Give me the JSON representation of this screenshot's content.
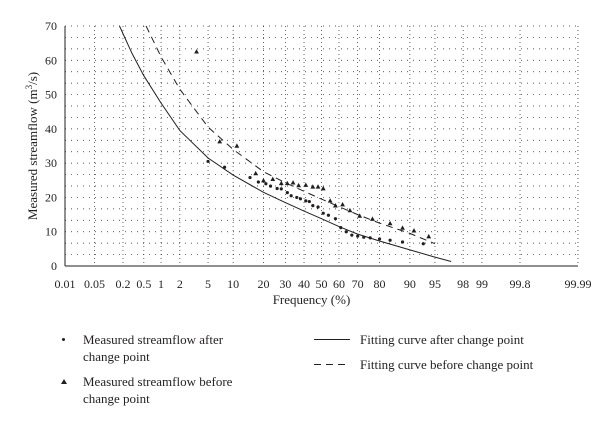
{
  "chart_data": {
    "type": "scatter",
    "xscale": "probability",
    "xlabel": "Frequency (%)",
    "ylabel": "Measured streamflow (m3/s)",
    "ylabel_parts": {
      "before": "Measured streamflow (m",
      "sup": "3",
      "after": "/s)"
    },
    "ylim": [
      0,
      70
    ],
    "yticks": [
      0,
      10,
      20,
      30,
      40,
      50,
      60,
      70
    ],
    "xticks": [
      "0.01",
      "0.05",
      "0.2",
      "0.5",
      "1",
      "2",
      "5",
      "10",
      "20",
      "30",
      "40",
      "50",
      "60",
      "70",
      "80",
      "90",
      "95",
      "98",
      "99",
      "99.8",
      "99.99"
    ],
    "xtick_values": [
      0.01,
      0.05,
      0.2,
      0.5,
      1,
      2,
      5,
      10,
      20,
      30,
      40,
      50,
      60,
      70,
      80,
      90,
      95,
      98,
      99,
      99.8,
      99.99
    ],
    "grid": "dotted",
    "series": [
      {
        "name": "Measured streamflow after change point",
        "kind": "points",
        "marker": "dot",
        "x": [
          5,
          8,
          15,
          18,
          21,
          23,
          26,
          28,
          31,
          33,
          36,
          38,
          41,
          43,
          45,
          48,
          51,
          54,
          58,
          61,
          64,
          67,
          70,
          73,
          76,
          80,
          84,
          88,
          93
        ],
        "y": [
          30.5,
          28.8,
          25.8,
          24.5,
          24.0,
          23.3,
          22.6,
          22.5,
          21.4,
          20.5,
          20.0,
          19.6,
          19.0,
          18.8,
          17.6,
          17.2,
          15.4,
          14.8,
          13.8,
          11.2,
          10.0,
          9.0,
          8.7,
          8.4,
          8.2,
          7.9,
          7.5,
          7.0,
          6.5
        ]
      },
      {
        "name": "Measured streamflow before change point",
        "kind": "points",
        "marker": "triangle",
        "x": [
          3.5,
          7,
          11,
          17,
          20,
          24,
          28,
          31,
          34,
          37,
          41,
          45,
          48,
          51,
          55,
          58,
          62,
          66,
          71,
          77,
          84,
          88,
          91,
          94
        ],
        "y": [
          62.5,
          36.3,
          35.0,
          27.0,
          24.9,
          25.3,
          24.1,
          24.1,
          24.3,
          23.5,
          23.6,
          23.1,
          23.1,
          22.6,
          19.0,
          17.6,
          17.9,
          16.2,
          14.6,
          13.7,
          12.4,
          11.1,
          10.3,
          8.6
        ]
      },
      {
        "name": "Fitting curve after change point",
        "kind": "line",
        "style": "solid",
        "x": [
          0.17,
          0.3,
          0.5,
          1,
          2,
          5,
          10,
          20,
          30,
          40,
          50,
          60,
          70,
          80,
          90,
          95,
          97
        ],
        "y": [
          70,
          62,
          55.5,
          47.5,
          39.5,
          31.5,
          26.5,
          21.5,
          18.5,
          16.0,
          13.8,
          11.5,
          9.3,
          7.3,
          4.7,
          2.6,
          1.3
        ]
      },
      {
        "name": "Fitting curve before change point",
        "kind": "line",
        "style": "dashed",
        "x": [
          0.55,
          1,
          2,
          5,
          10,
          20,
          30,
          40,
          50,
          60,
          70,
          80,
          90,
          95
        ],
        "y": [
          70,
          61,
          51.5,
          40.5,
          34.0,
          27.5,
          24.3,
          21.8,
          19.5,
          17.3,
          15.0,
          12.5,
          9.5,
          6.5
        ]
      }
    ]
  },
  "legend": {
    "after_points": "Measured streamflow after change point",
    "before_points": "Measured streamflow before change point",
    "after_curve": "Fitting curve after change point",
    "before_curve": "Fitting curve before change point"
  }
}
